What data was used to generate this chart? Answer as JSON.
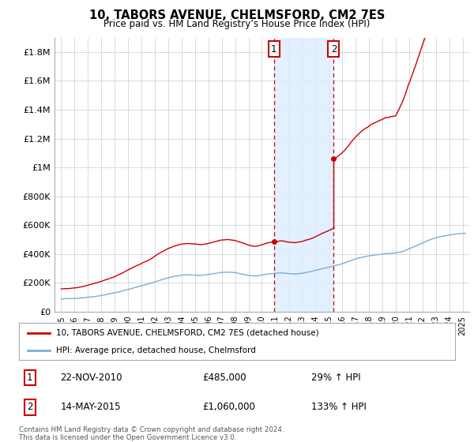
{
  "title": "10, TABORS AVENUE, CHELMSFORD, CM2 7ES",
  "subtitle": "Price paid vs. HM Land Registry’s House Price Index (HPI)",
  "footer": "Contains HM Land Registry data © Crown copyright and database right 2024.\nThis data is licensed under the Open Government Licence v3.0.",
  "sale1_date": "22-NOV-2010",
  "sale1_price": 485000,
  "sale1_pct": "29%",
  "sale2_date": "14-MAY-2015",
  "sale2_price": 1060000,
  "sale2_pct": "133%",
  "sale1_x": 2010.9,
  "sale2_x": 2015.37,
  "legend_line1": "10, TABORS AVENUE, CHELMSFORD, CM2 7ES (detached house)",
  "legend_line2": "HPI: Average price, detached house, Chelmsford",
  "hpi_color": "#7aaed6",
  "price_color": "#cc0000",
  "background_color": "#ffffff",
  "grid_color": "#cccccc",
  "highlight_fill": "#ddeeff",
  "ylim": [
    0,
    1900000
  ],
  "yticks": [
    0,
    200000,
    400000,
    600000,
    800000,
    1000000,
    1200000,
    1400000,
    1600000,
    1800000
  ],
  "ytick_labels": [
    "£0",
    "£200K",
    "£400K",
    "£600K",
    "£800K",
    "£1M",
    "£1.2M",
    "£1.4M",
    "£1.6M",
    "£1.8M"
  ],
  "xlim_start": 1994.5,
  "xlim_end": 2025.5,
  "hpi_years": [
    1995,
    1995.5,
    1996,
    1996.5,
    1997,
    1997.5,
    1998,
    1998.5,
    1999,
    1999.5,
    2000,
    2000.5,
    2001,
    2001.5,
    2002,
    2002.5,
    2003,
    2003.5,
    2004,
    2004.5,
    2005,
    2005.5,
    2006,
    2006.5,
    2007,
    2007.5,
    2008,
    2008.5,
    2009,
    2009.5,
    2010,
    2010.5,
    2011,
    2011.5,
    2012,
    2012.5,
    2013,
    2013.5,
    2014,
    2014.5,
    2015,
    2015.5,
    2016,
    2016.5,
    2017,
    2017.5,
    2018,
    2018.5,
    2019,
    2019.5,
    2020,
    2020.5,
    2021,
    2021.5,
    2022,
    2022.5,
    2023,
    2023.5,
    2024,
    2024.5,
    2025
  ],
  "hpi_values": [
    88000,
    89000,
    92000,
    96000,
    102000,
    108000,
    115000,
    124000,
    133000,
    144000,
    158000,
    170000,
    182000,
    195000,
    210000,
    225000,
    238000,
    248000,
    255000,
    258000,
    255000,
    253000,
    258000,
    265000,
    272000,
    275000,
    270000,
    262000,
    252000,
    248000,
    255000,
    262000,
    265000,
    267000,
    262000,
    260000,
    265000,
    273000,
    283000,
    295000,
    305000,
    318000,
    330000,
    345000,
    362000,
    375000,
    385000,
    392000,
    398000,
    402000,
    405000,
    415000,
    435000,
    455000,
    478000,
    500000,
    515000,
    525000,
    535000,
    540000,
    545000
  ],
  "price_base_years": [
    1995,
    1996,
    1997,
    1998,
    1999,
    2000,
    2001,
    2002,
    2003,
    2004,
    2005,
    2006,
    2007,
    2008,
    2009,
    2010,
    2011,
    2012,
    2013,
    2014,
    2015,
    2016,
    2017,
    2018,
    2019,
    2020,
    2021,
    2022,
    2023,
    2024,
    2025
  ],
  "price_base_values": [
    95000,
    100000,
    108000,
    118000,
    130000,
    148000,
    170000,
    198000,
    225000,
    248000,
    255000,
    265000,
    278000,
    268000,
    252000,
    262000,
    268000,
    265000,
    275000,
    290000,
    308000,
    328000,
    350000,
    368000,
    378000,
    385000,
    410000,
    445000,
    478000,
    500000,
    510000
  ]
}
